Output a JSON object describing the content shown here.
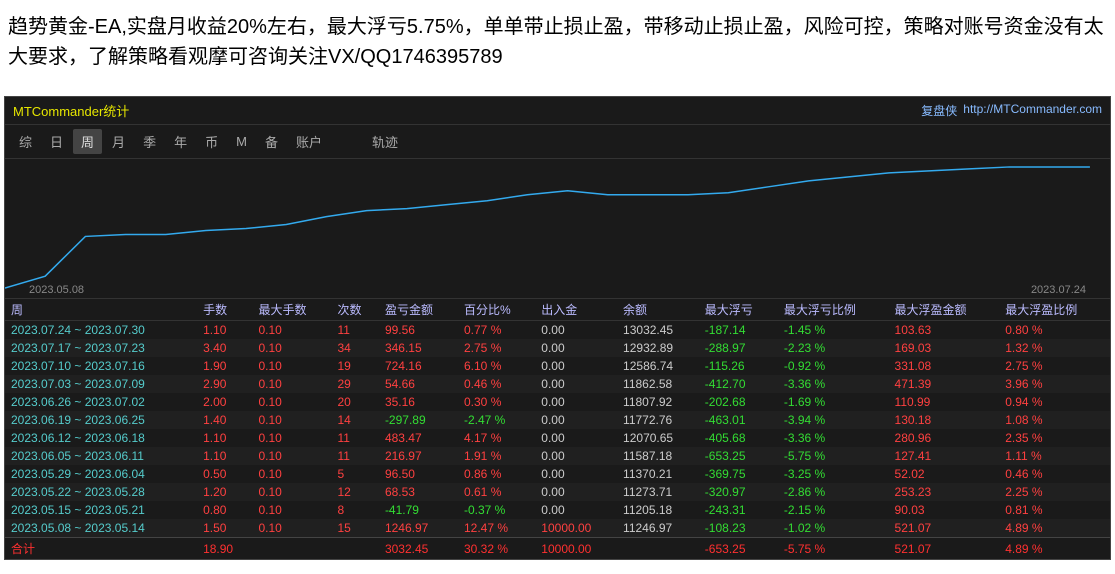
{
  "header_text": "趋势黄金-EA,实盘月收益20%左右，最大浮亏5.75%，单单带止损止盈，带移动止损止盈，风险可控，策略对账号资金没有太大要求，了解策略看观摩可咨询关注VX/QQ1746395789",
  "window": {
    "title": "MTCommander统计",
    "brand": "复盘侠",
    "url": "http://MTCommander.com"
  },
  "tabs": {
    "items": [
      "综",
      "日",
      "周",
      "月",
      "季",
      "年",
      "币",
      "M",
      "备",
      "账户"
    ],
    "active_index": 2,
    "right_item": "轨迹"
  },
  "chart": {
    "x_start_label": "2023.05.08",
    "x_end_label": "2023.07.24",
    "line_color": "#33aaee",
    "background": "#1a1a1a",
    "points": [
      [
        0,
        130
      ],
      [
        40,
        118
      ],
      [
        80,
        78
      ],
      [
        120,
        76
      ],
      [
        160,
        76
      ],
      [
        200,
        72
      ],
      [
        240,
        70
      ],
      [
        280,
        66
      ],
      [
        320,
        58
      ],
      [
        360,
        52
      ],
      [
        400,
        50
      ],
      [
        440,
        46
      ],
      [
        480,
        42
      ],
      [
        520,
        36
      ],
      [
        560,
        32
      ],
      [
        600,
        36
      ],
      [
        640,
        36
      ],
      [
        680,
        36
      ],
      [
        720,
        34
      ],
      [
        760,
        28
      ],
      [
        800,
        22
      ],
      [
        840,
        18
      ],
      [
        880,
        14
      ],
      [
        920,
        12
      ],
      [
        960,
        10
      ],
      [
        1000,
        8
      ],
      [
        1040,
        8
      ],
      [
        1080,
        8
      ]
    ]
  },
  "table": {
    "columns": [
      "周",
      "手数",
      "最大手数",
      "次数",
      "盈亏金额",
      "百分比%",
      "出入金",
      "余额",
      "最大浮亏",
      "最大浮亏比例",
      "最大浮盈金额",
      "最大浮盈比例"
    ],
    "rows": [
      {
        "period": "2023.07.24 ~ 2023.07.30",
        "lots": "1.10",
        "maxlots": "0.10",
        "count": "11",
        "pl": "99.56",
        "pct": "0.77 %",
        "io": "0.00",
        "bal": "13032.45",
        "maxfl": "-187.14",
        "maxflpct": "-1.45 %",
        "maxfp": "103.63",
        "maxfppct": "0.80 %"
      },
      {
        "period": "2023.07.17 ~ 2023.07.23",
        "lots": "3.40",
        "maxlots": "0.10",
        "count": "34",
        "pl": "346.15",
        "pct": "2.75 %",
        "io": "0.00",
        "bal": "12932.89",
        "maxfl": "-288.97",
        "maxflpct": "-2.23 %",
        "maxfp": "169.03",
        "maxfppct": "1.32 %"
      },
      {
        "period": "2023.07.10 ~ 2023.07.16",
        "lots": "1.90",
        "maxlots": "0.10",
        "count": "19",
        "pl": "724.16",
        "pct": "6.10 %",
        "io": "0.00",
        "bal": "12586.74",
        "maxfl": "-115.26",
        "maxflpct": "-0.92 %",
        "maxfp": "331.08",
        "maxfppct": "2.75 %"
      },
      {
        "period": "2023.07.03 ~ 2023.07.09",
        "lots": "2.90",
        "maxlots": "0.10",
        "count": "29",
        "pl": "54.66",
        "pct": "0.46 %",
        "io": "0.00",
        "bal": "11862.58",
        "maxfl": "-412.70",
        "maxflpct": "-3.36 %",
        "maxfp": "471.39",
        "maxfppct": "3.96 %"
      },
      {
        "period": "2023.06.26 ~ 2023.07.02",
        "lots": "2.00",
        "maxlots": "0.10",
        "count": "20",
        "pl": "35.16",
        "pct": "0.30 %",
        "io": "0.00",
        "bal": "11807.92",
        "maxfl": "-202.68",
        "maxflpct": "-1.69 %",
        "maxfp": "110.99",
        "maxfppct": "0.94 %"
      },
      {
        "period": "2023.06.19 ~ 2023.06.25",
        "lots": "1.40",
        "maxlots": "0.10",
        "count": "14",
        "pl": "-297.89",
        "pct": "-2.47 %",
        "io": "0.00",
        "bal": "11772.76",
        "maxfl": "-463.01",
        "maxflpct": "-3.94 %",
        "maxfp": "130.18",
        "maxfppct": "1.08 %"
      },
      {
        "period": "2023.06.12 ~ 2023.06.18",
        "lots": "1.10",
        "maxlots": "0.10",
        "count": "11",
        "pl": "483.47",
        "pct": "4.17 %",
        "io": "0.00",
        "bal": "12070.65",
        "maxfl": "-405.68",
        "maxflpct": "-3.36 %",
        "maxfp": "280.96",
        "maxfppct": "2.35 %"
      },
      {
        "period": "2023.06.05 ~ 2023.06.11",
        "lots": "1.10",
        "maxlots": "0.10",
        "count": "11",
        "pl": "216.97",
        "pct": "1.91 %",
        "io": "0.00",
        "bal": "11587.18",
        "maxfl": "-653.25",
        "maxflpct": "-5.75 %",
        "maxfp": "127.41",
        "maxfppct": "1.11 %"
      },
      {
        "period": "2023.05.29 ~ 2023.06.04",
        "lots": "0.50",
        "maxlots": "0.10",
        "count": "5",
        "pl": "96.50",
        "pct": "0.86 %",
        "io": "0.00",
        "bal": "11370.21",
        "maxfl": "-369.75",
        "maxflpct": "-3.25 %",
        "maxfp": "52.02",
        "maxfppct": "0.46 %"
      },
      {
        "period": "2023.05.22 ~ 2023.05.28",
        "lots": "1.20",
        "maxlots": "0.10",
        "count": "12",
        "pl": "68.53",
        "pct": "0.61 %",
        "io": "0.00",
        "bal": "11273.71",
        "maxfl": "-320.97",
        "maxflpct": "-2.86 %",
        "maxfp": "253.23",
        "maxfppct": "2.25 %"
      },
      {
        "period": "2023.05.15 ~ 2023.05.21",
        "lots": "0.80",
        "maxlots": "0.10",
        "count": "8",
        "pl": "-41.79",
        "pct": "-0.37 %",
        "io": "0.00",
        "bal": "11205.18",
        "maxfl": "-243.31",
        "maxflpct": "-2.15 %",
        "maxfp": "90.03",
        "maxfppct": "0.81 %"
      },
      {
        "period": "2023.05.08 ~ 2023.05.14",
        "lots": "1.50",
        "maxlots": "0.10",
        "count": "15",
        "pl": "1246.97",
        "pct": "12.47 %",
        "io": "10000.00",
        "bal": "11246.97",
        "maxfl": "-108.23",
        "maxflpct": "-1.02 %",
        "maxfp": "521.07",
        "maxfppct": "4.89 %"
      }
    ],
    "total": {
      "label": "合计",
      "lots": "18.90",
      "maxlots": "",
      "count": "",
      "pl": "3032.45",
      "pct": "30.32 %",
      "io": "10000.00",
      "bal": "",
      "maxfl": "-653.25",
      "maxflpct": "-5.75 %",
      "maxfp": "521.07",
      "maxfppct": "4.89 %"
    }
  },
  "colors": {
    "period": "#55cccc",
    "pos": "#ff4040",
    "neg": "#33dd33",
    "neutral": "#cccccc",
    "header": "#bbbbff",
    "window_title": "#e6e600",
    "link": "#88bbff"
  }
}
